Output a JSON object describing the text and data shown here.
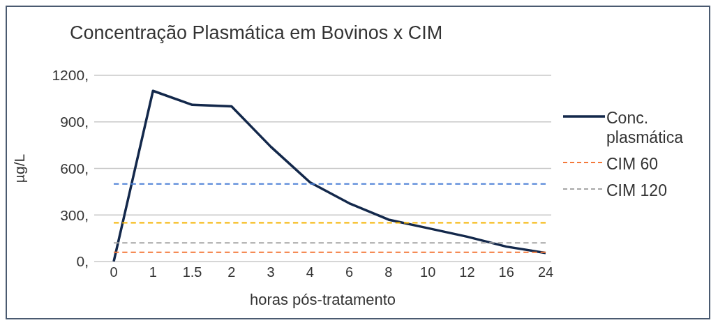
{
  "chart_data": {
    "type": "line",
    "title": "Concentração Plasmática em Bovinos x CIM",
    "xlabel": "horas pós-tratamento",
    "ylabel": "µg/L",
    "categories": [
      "0",
      "1",
      "1.5",
      "2",
      "3",
      "4",
      "6",
      "8",
      "10",
      "12",
      "16",
      "24"
    ],
    "series": [
      {
        "name": "Conc. plasmática",
        "color": "#13284b",
        "values": [
          0,
          1100,
          1010,
          1000,
          740,
          510,
          375,
          270,
          215,
          160,
          96,
          55
        ]
      },
      {
        "name": "CIM 60",
        "color": "#f4793b",
        "line_style": "dashed",
        "values": [
          60,
          60,
          60,
          60,
          60,
          60,
          60,
          60,
          60,
          60,
          60,
          60
        ]
      },
      {
        "name": "CIM 120",
        "color": "#a6a6a6",
        "line_style": "dashed",
        "values": [
          120,
          120,
          120,
          120,
          120,
          120,
          120,
          120,
          120,
          120,
          120,
          120
        ]
      },
      {
        "color": "#4a7fd6",
        "line_style": "dashed",
        "values": [
          500,
          500,
          500,
          500,
          500,
          500,
          500,
          500,
          500,
          500,
          500,
          500
        ]
      },
      {
        "color": "#f5b400",
        "line_style": "dashed",
        "values": [
          250,
          250,
          250,
          250,
          250,
          250,
          250,
          250,
          250,
          250,
          250,
          250
        ]
      }
    ],
    "ylim": [
      0,
      1200
    ],
    "yticks": [
      {
        "value": 0,
        "label": "0,"
      },
      {
        "value": 300,
        "label": "300,"
      },
      {
        "value": 600,
        "label": "600,"
      },
      {
        "value": 900,
        "label": "900,"
      },
      {
        "value": 1200,
        "label": "1200,"
      }
    ],
    "grid": "y",
    "legend": "right",
    "marker": "none"
  }
}
